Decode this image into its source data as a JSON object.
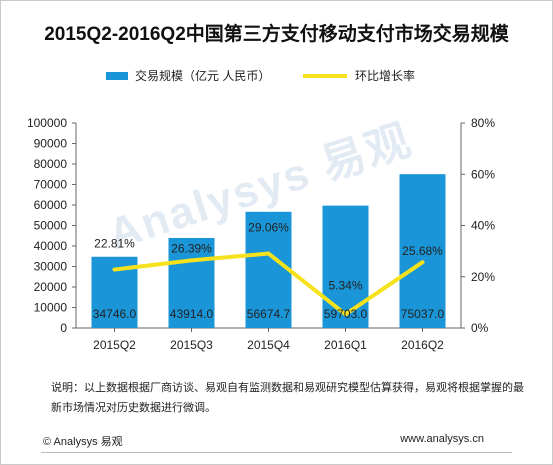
{
  "chart_data": {
    "type": "bar+line",
    "title": "2015Q2-2016Q2中国第三方支付移动支付市场交易规模",
    "categories": [
      "2015Q2",
      "2015Q3",
      "2015Q4",
      "2016Q1",
      "2016Q2"
    ],
    "series": [
      {
        "name": "交易规模（亿元 人民币）",
        "type": "bar",
        "axis": "left",
        "color": "#1a96d8",
        "values": [
          34746.0,
          43914.0,
          56674.7,
          59703.0,
          75037.0
        ],
        "labels": [
          "34746.0",
          "43914.0",
          "56674.7",
          "59703.0",
          "75037.0"
        ]
      },
      {
        "name": "环比增长率",
        "type": "line",
        "axis": "right",
        "color": "#f5e11c",
        "values": [
          22.81,
          26.39,
          29.06,
          5.34,
          25.68
        ],
        "labels": [
          "22.81%",
          "26.39%",
          "29.06%",
          "5.34%",
          "25.68%"
        ]
      }
    ],
    "y_left": {
      "min": 0,
      "max": 100000,
      "ticks": [
        "0",
        "10000",
        "20000",
        "30000",
        "40000",
        "50000",
        "60000",
        "70000",
        "80000",
        "90000",
        "100000"
      ]
    },
    "y_right": {
      "min": 0,
      "max": 80,
      "ticks": [
        "0%",
        "20%",
        "40%",
        "60%",
        "80%"
      ]
    },
    "legend_position": "top",
    "grid": false
  },
  "note": "说明：以上数据根据厂商访谈、易观自有监测数据和易观研究模型估算获得，易观将根据掌握的最新市场情况对历史数据进行微调。",
  "footer": {
    "left": "© Analysys 易观",
    "right": "www.analysys.cn"
  },
  "watermark": "Analysys 易观"
}
